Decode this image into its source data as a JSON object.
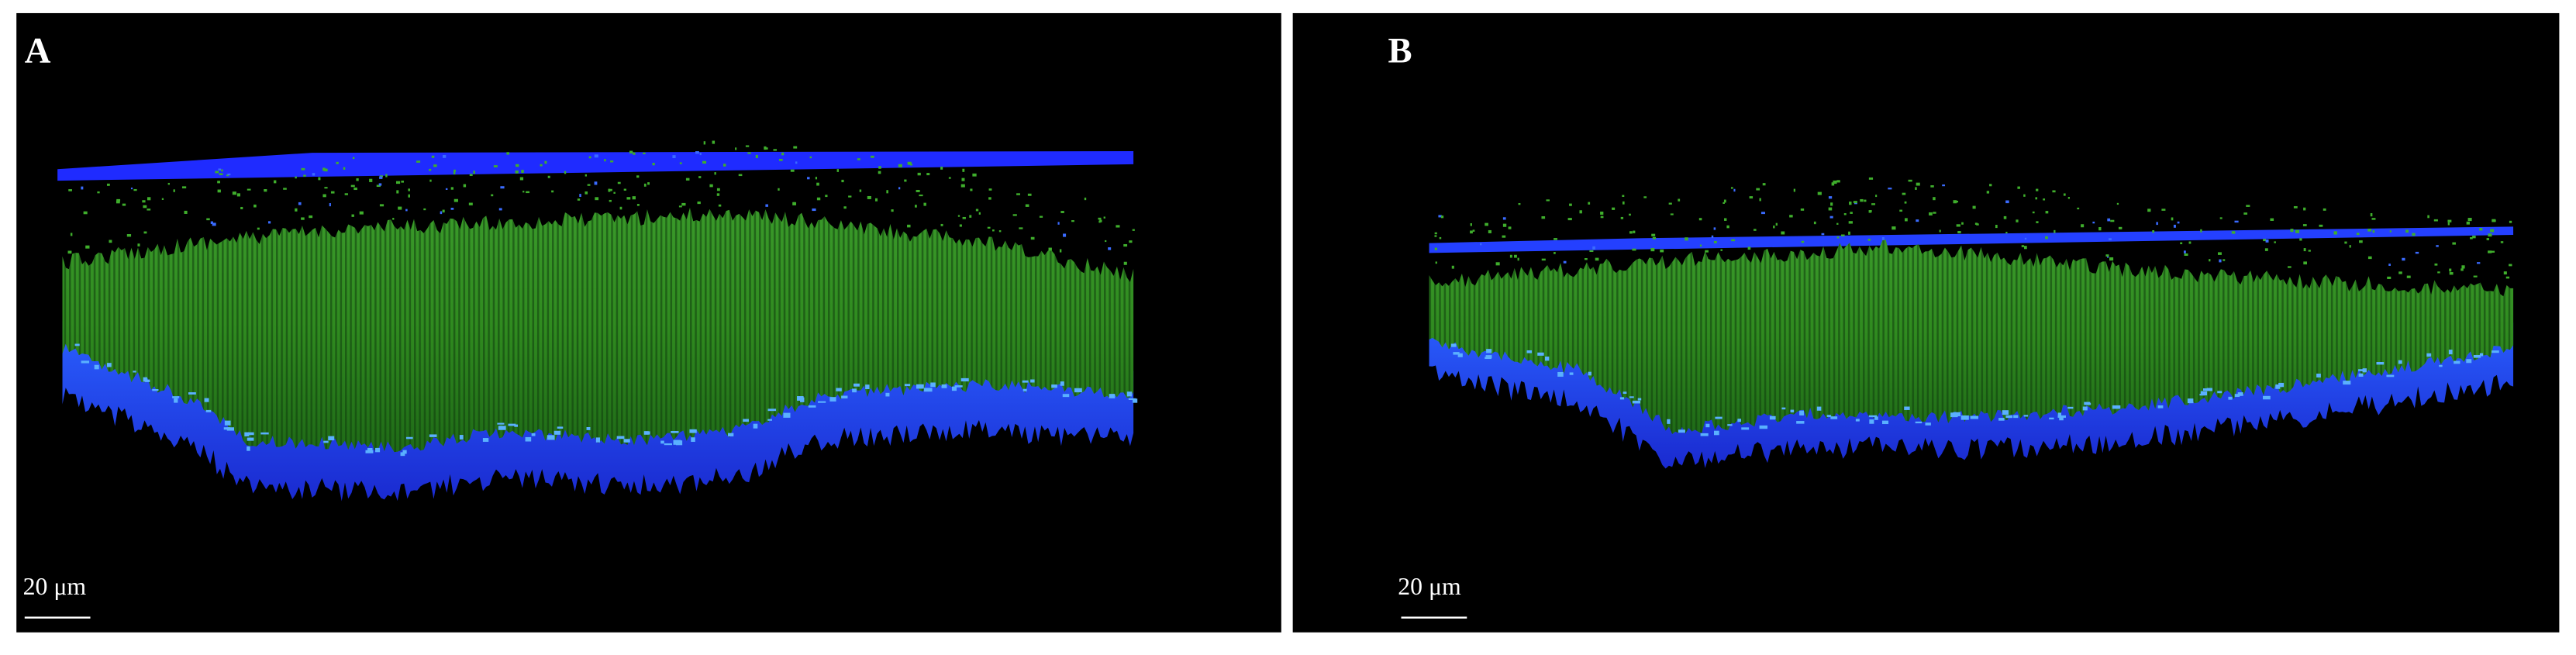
{
  "panels": [
    {
      "label": "A",
      "scale_bar": "20 μm"
    },
    {
      "label": "B",
      "scale_bar": "20 μm"
    }
  ]
}
